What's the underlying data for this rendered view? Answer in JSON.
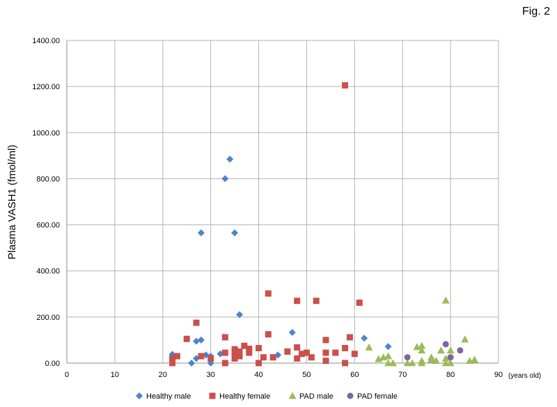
{
  "figure_label": "Fig. 2",
  "chart_data": {
    "type": "scatter",
    "title": "",
    "xlabel": "",
    "x_unit": "(years old)",
    "ylabel": "Plasma VASH1 (fmol/ml)",
    "xlim": [
      0,
      90
    ],
    "ylim": [
      0,
      1400
    ],
    "x_ticks": [
      0,
      10,
      20,
      30,
      40,
      50,
      60,
      70,
      80,
      90
    ],
    "x_tick_labels": [
      "0",
      "10",
      "20",
      "30",
      "40",
      "50",
      "60",
      "70",
      "80",
      "90"
    ],
    "y_ticks": [
      0,
      200,
      400,
      600,
      800,
      1000,
      1200,
      1400
    ],
    "y_tick_labels": [
      "0.00",
      "200.00",
      "400.00",
      "600.00",
      "800.00",
      "1000.00",
      "1200.00",
      "1400.00"
    ],
    "grid": true,
    "legend_position": "bottom",
    "series": [
      {
        "name": "Healthy male",
        "color": "#4a86c8",
        "marker": "diamond",
        "points": [
          [
            22,
            38
          ],
          [
            26,
            0
          ],
          [
            27,
            20
          ],
          [
            27,
            95
          ],
          [
            28,
            100
          ],
          [
            28,
            565
          ],
          [
            29,
            35
          ],
          [
            30,
            30
          ],
          [
            30,
            0
          ],
          [
            32,
            40
          ],
          [
            33,
            800
          ],
          [
            34,
            885
          ],
          [
            35,
            565
          ],
          [
            36,
            210
          ],
          [
            44,
            35
          ],
          [
            47,
            133
          ],
          [
            62,
            108
          ],
          [
            67,
            72
          ]
        ]
      },
      {
        "name": "Healthy female",
        "color": "#c9504b",
        "marker": "square",
        "points": [
          [
            22,
            0
          ],
          [
            22,
            20
          ],
          [
            23,
            30
          ],
          [
            25,
            105
          ],
          [
            27,
            175
          ],
          [
            28,
            30
          ],
          [
            30,
            20
          ],
          [
            33,
            0
          ],
          [
            33,
            45
          ],
          [
            33,
            112
          ],
          [
            35,
            20
          ],
          [
            35,
            40
          ],
          [
            35,
            60
          ],
          [
            36,
            30
          ],
          [
            36,
            50
          ],
          [
            37,
            75
          ],
          [
            38,
            45
          ],
          [
            38,
            62
          ],
          [
            40,
            0
          ],
          [
            40,
            65
          ],
          [
            41,
            25
          ],
          [
            42,
            125
          ],
          [
            42,
            302
          ],
          [
            43,
            25
          ],
          [
            46,
            50
          ],
          [
            48,
            20
          ],
          [
            48,
            68
          ],
          [
            48,
            270
          ],
          [
            49,
            40
          ],
          [
            50,
            45
          ],
          [
            51,
            25
          ],
          [
            52,
            270
          ],
          [
            54,
            10
          ],
          [
            54,
            45
          ],
          [
            54,
            100
          ],
          [
            56,
            45
          ],
          [
            58,
            0
          ],
          [
            58,
            65
          ],
          [
            58,
            1205
          ],
          [
            59,
            112
          ],
          [
            60,
            40
          ],
          [
            61,
            262
          ]
        ]
      },
      {
        "name": "PAD male",
        "color": "#9bbb59",
        "marker": "triangle",
        "points": [
          [
            63,
            68
          ],
          [
            65,
            18
          ],
          [
            66,
            25
          ],
          [
            67,
            0
          ],
          [
            67,
            30
          ],
          [
            68,
            0
          ],
          [
            71,
            0
          ],
          [
            72,
            0
          ],
          [
            73,
            70
          ],
          [
            74,
            0
          ],
          [
            74,
            10
          ],
          [
            74,
            55
          ],
          [
            74,
            75
          ],
          [
            76,
            15
          ],
          [
            76,
            25
          ],
          [
            77,
            10
          ],
          [
            78,
            55
          ],
          [
            79,
            0
          ],
          [
            79,
            20
          ],
          [
            79,
            272
          ],
          [
            80,
            0
          ],
          [
            80,
            55
          ],
          [
            83,
            103
          ],
          [
            84,
            10
          ],
          [
            85,
            15
          ]
        ]
      },
      {
        "name": "PAD female",
        "color": "#8064a2",
        "marker": "circle",
        "points": [
          [
            71,
            25
          ],
          [
            79,
            82
          ],
          [
            80,
            25
          ],
          [
            82,
            55
          ]
        ]
      }
    ]
  }
}
